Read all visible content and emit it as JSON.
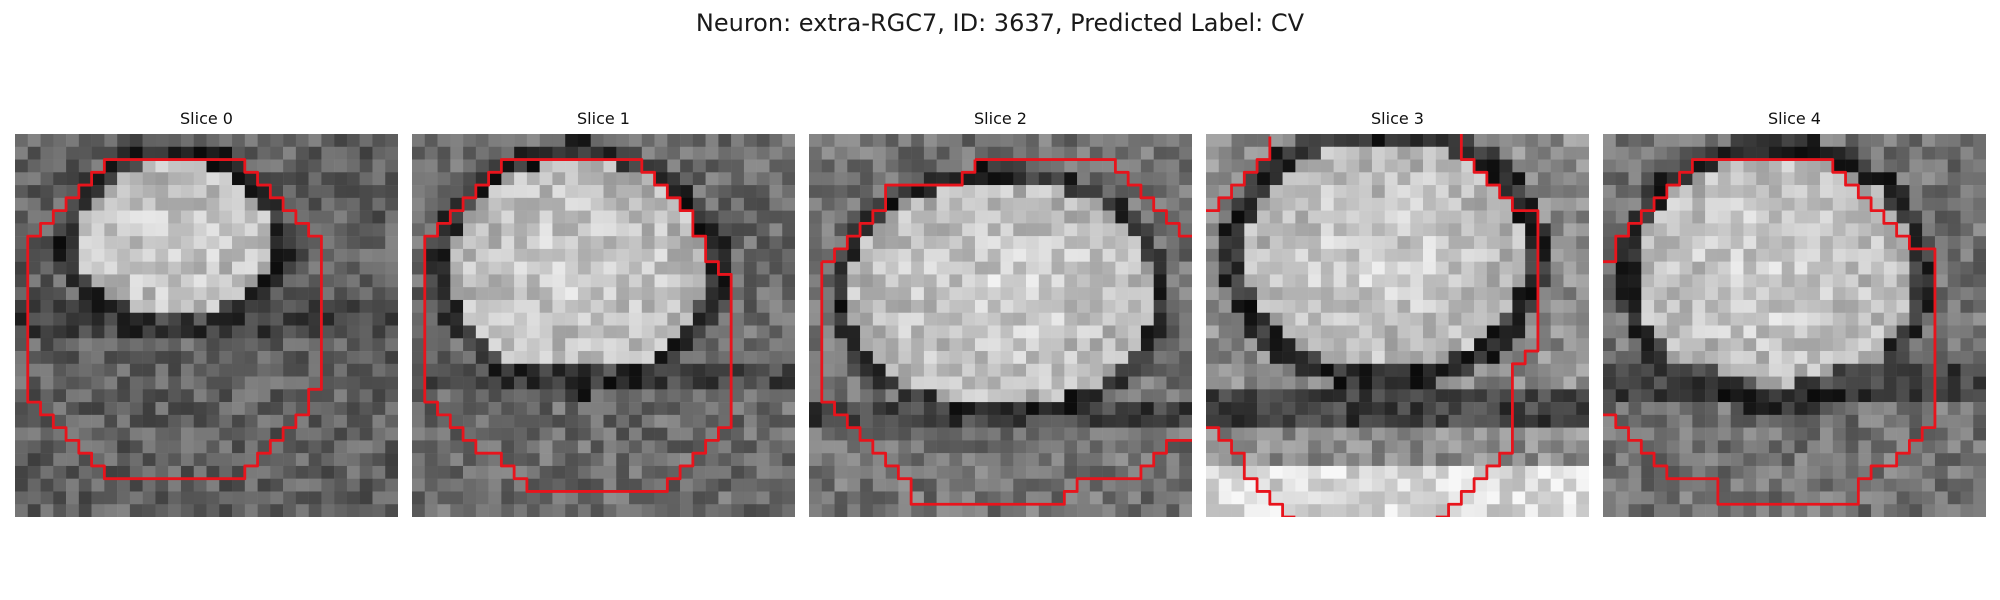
{
  "figure": {
    "title": "Neuron: extra-RGC7, ID: 3637, Predicted Label: CV"
  },
  "style": {
    "contour_color": "#e8141c",
    "colormap": "grayscale"
  },
  "panels": [
    {
      "title": "Slice 0"
    },
    {
      "title": "Slice 1"
    },
    {
      "title": "Slice 2"
    },
    {
      "title": "Slice 3"
    },
    {
      "title": "Slice 4"
    }
  ]
}
